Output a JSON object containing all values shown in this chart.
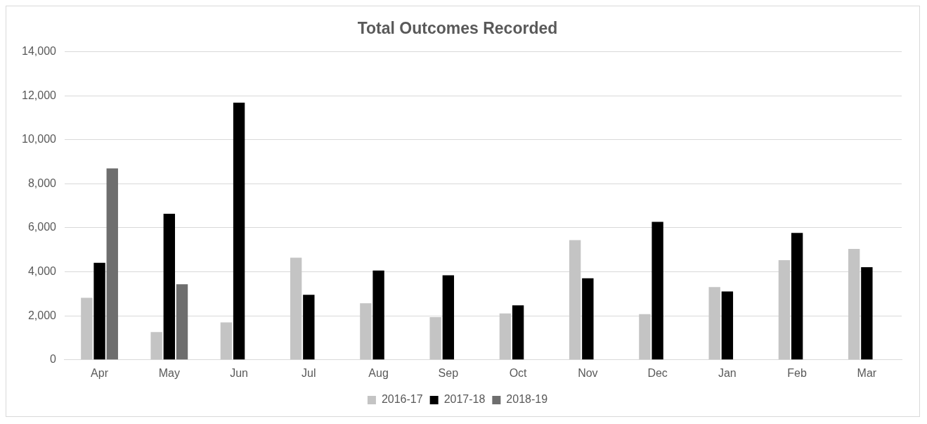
{
  "chart_data": {
    "type": "bar",
    "title": "Total Outcomes Recorded",
    "categories": [
      "Apr",
      "May",
      "Jun",
      "Jul",
      "Aug",
      "Sep",
      "Oct",
      "Nov",
      "Dec",
      "Jan",
      "Feb",
      "Mar"
    ],
    "series": [
      {
        "name": "2016-17",
        "color": "#c4c4c4",
        "values": [
          2820,
          1260,
          1700,
          4640,
          2570,
          1940,
          2110,
          5440,
          2080,
          3310,
          4530,
          5040
        ]
      },
      {
        "name": "2017-18",
        "color": "#000000",
        "values": [
          4410,
          6640,
          11690,
          2960,
          4060,
          3840,
          2480,
          3710,
          6270,
          3110,
          5770,
          4210
        ]
      },
      {
        "name": "2018-19",
        "color": "#6e6e6e",
        "values": [
          8700,
          3440,
          null,
          null,
          null,
          null,
          null,
          null,
          null,
          null,
          null,
          null
        ]
      }
    ],
    "ylim": [
      0,
      14000
    ],
    "yticks": [
      {
        "value": 0,
        "label": "0"
      },
      {
        "value": 2000,
        "label": "2,000"
      },
      {
        "value": 4000,
        "label": "4,000"
      },
      {
        "value": 6000,
        "label": "6,000"
      },
      {
        "value": 8000,
        "label": "8,000"
      },
      {
        "value": 10000,
        "label": "10,000"
      },
      {
        "value": 12000,
        "label": "12,000"
      },
      {
        "value": 14000,
        "label": "14,000"
      }
    ],
    "grid": "y",
    "legend": "bottom"
  }
}
